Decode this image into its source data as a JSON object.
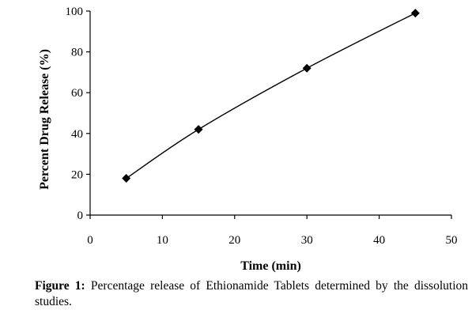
{
  "chart_data": {
    "type": "line",
    "x": [
      5,
      15,
      30,
      45
    ],
    "series": [
      {
        "values": [
          18,
          42,
          72,
          99
        ],
        "marker": "diamond",
        "color": "#000000"
      }
    ],
    "xlabel": "Time (min)",
    "ylabel": "Percent Drug Release (%)",
    "xlim": [
      0,
      50
    ],
    "ylim": [
      0,
      100
    ],
    "xticks": [
      0,
      10,
      20,
      30,
      40,
      50
    ],
    "yticks": [
      0,
      20,
      40,
      60,
      80,
      100
    ],
    "grid": false,
    "smoothed": true
  },
  "caption": {
    "label": "Figure 1:",
    "text": "Percentage release of Ethionamide Tablets determined by the dissolution studies."
  }
}
